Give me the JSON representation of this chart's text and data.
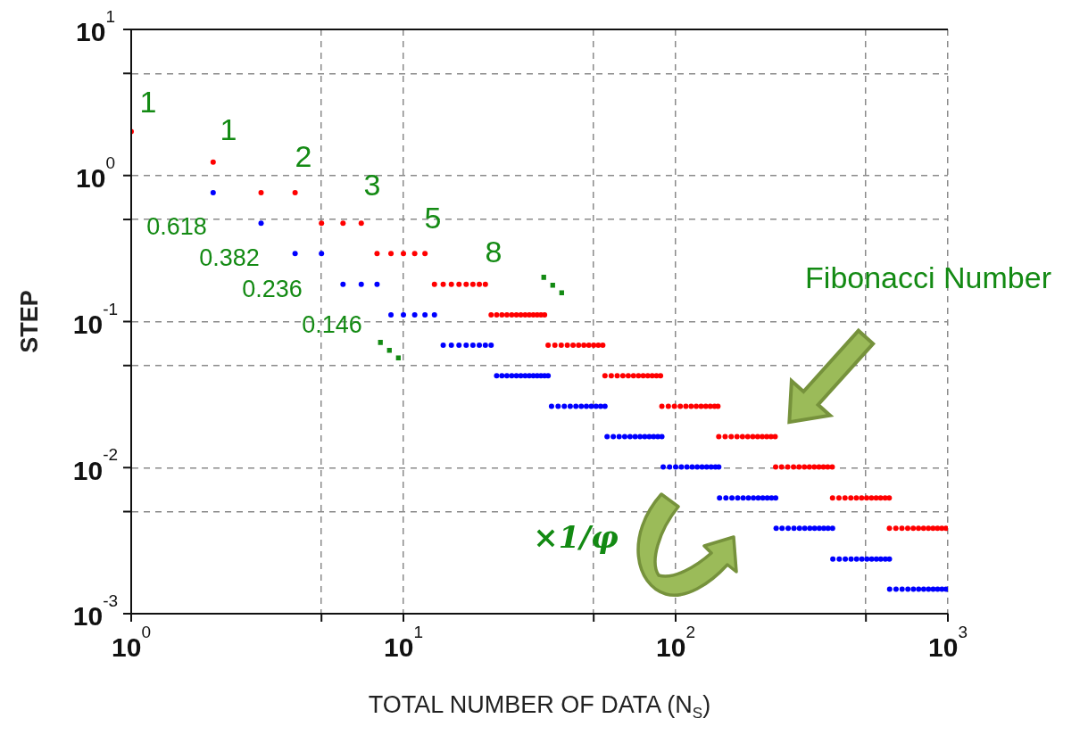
{
  "chart_data": {
    "type": "scatter",
    "xlabel": "TOTAL NUMBER OF DATA (N$_{S}$)",
    "ylabel": "STEP",
    "log": "xy",
    "grid": true,
    "legend": false,
    "marker": "circle",
    "xlim": [
      1,
      1000
    ],
    "ylim": [
      0.001,
      10
    ],
    "xticks": [
      {
        "value": 1,
        "label": "10$^{0}$"
      },
      {
        "value": 5,
        "label": null
      },
      {
        "value": 10,
        "label": "10$^{1}$"
      },
      {
        "value": 50,
        "label": null
      },
      {
        "value": 100,
        "label": "10$^{2}$"
      },
      {
        "value": 500,
        "label": null
      },
      {
        "value": 1000,
        "label": "10$^{3}$"
      }
    ],
    "yticks": [
      {
        "value": 0.001,
        "label": "10$^{-3}$"
      },
      {
        "value": 0.005,
        "label": null
      },
      {
        "value": 0.01,
        "label": "10$^{-2}$"
      },
      {
        "value": 0.05,
        "label": null
      },
      {
        "value": 0.1,
        "label": "10$^{-1}$"
      },
      {
        "value": 0.5,
        "label": null
      },
      {
        "value": 1,
        "label": "10$^{0}$"
      },
      {
        "value": 5,
        "label": null
      },
      {
        "value": 10,
        "label": "10$^{1}$"
      }
    ],
    "series": [
      {
        "color": "#ff0000",
        "x": [
          1,
          2,
          3,
          4,
          5,
          6,
          7,
          8,
          9,
          10,
          11,
          12,
          13,
          14,
          15,
          16,
          17,
          18,
          19,
          20,
          21,
          22,
          23,
          24,
          25,
          26,
          27,
          28,
          29,
          30,
          31,
          32,
          33,
          34,
          36,
          38,
          40,
          42,
          44,
          46,
          48,
          50,
          52,
          54,
          55,
          58,
          61,
          64,
          67,
          70,
          73,
          76,
          79,
          82,
          85,
          88,
          89,
          94,
          99,
          104,
          109,
          114,
          119,
          124,
          129,
          134,
          139,
          143,
          144,
          152,
          160,
          168,
          176,
          184,
          192,
          200,
          208,
          216,
          224,
          232,
          233,
          245,
          258,
          271,
          284,
          297,
          310,
          323,
          336,
          349,
          362,
          376,
          377,
          398,
          419,
          440,
          461,
          482,
          503,
          524,
          545,
          566,
          588,
          609,
          610,
          644,
          678,
          712,
          746,
          780,
          814,
          848,
          882,
          916,
          950,
          984
        ],
        "values": [
          2,
          1.236,
          0.764,
          0.764,
          0.472,
          0.472,
          0.472,
          0.292,
          0.292,
          0.292,
          0.292,
          0.292,
          0.18,
          0.18,
          0.18,
          0.18,
          0.18,
          0.18,
          0.18,
          0.18,
          0.111,
          0.111,
          0.111,
          0.111,
          0.111,
          0.111,
          0.111,
          0.111,
          0.111,
          0.111,
          0.111,
          0.111,
          0.111,
          0.0689,
          0.0689,
          0.0689,
          0.0689,
          0.0689,
          0.0689,
          0.0689,
          0.0689,
          0.0689,
          0.0689,
          0.0689,
          0.0426,
          0.0426,
          0.0426,
          0.0426,
          0.0426,
          0.0426,
          0.0426,
          0.0426,
          0.0426,
          0.0426,
          0.0426,
          0.0426,
          0.0263,
          0.0263,
          0.0263,
          0.0263,
          0.0263,
          0.0263,
          0.0263,
          0.0263,
          0.0263,
          0.0263,
          0.0263,
          0.0263,
          0.0163,
          0.0163,
          0.0163,
          0.0163,
          0.0163,
          0.0163,
          0.0163,
          0.0163,
          0.0163,
          0.0163,
          0.0163,
          0.0163,
          0.0101,
          0.0101,
          0.0101,
          0.0101,
          0.0101,
          0.0101,
          0.0101,
          0.0101,
          0.0101,
          0.0101,
          0.0101,
          0.0101,
          0.00621,
          0.00621,
          0.00621,
          0.00621,
          0.00621,
          0.00621,
          0.00621,
          0.00621,
          0.00621,
          0.00621,
          0.00621,
          0.00621,
          0.00384,
          0.00384,
          0.00384,
          0.00384,
          0.00384,
          0.00384,
          0.00384,
          0.00384,
          0.00384,
          0.00384,
          0.00384,
          0.00384
        ]
      },
      {
        "color": "#0000ff",
        "x": [
          2,
          3,
          4,
          5,
          6,
          7,
          8,
          9,
          10,
          11,
          12,
          13,
          14,
          15,
          16,
          17,
          18,
          19,
          20,
          21,
          22,
          23,
          24,
          25,
          26,
          27,
          28,
          29,
          30,
          31,
          32,
          33,
          34,
          35,
          37,
          39,
          41,
          43,
          45,
          47,
          49,
          51,
          53,
          55,
          56,
          59,
          62,
          65,
          68,
          71,
          74,
          77,
          80,
          83,
          86,
          89,
          90,
          95,
          100,
          105,
          110,
          115,
          120,
          125,
          130,
          135,
          140,
          144,
          145,
          153,
          161,
          169,
          177,
          185,
          193,
          201,
          209,
          217,
          225,
          233,
          234,
          246,
          259,
          272,
          285,
          298,
          311,
          324,
          337,
          350,
          363,
          377,
          378,
          399,
          420,
          441,
          462,
          483,
          504,
          525,
          546,
          567,
          589,
          610,
          611,
          645,
          679,
          713,
          747,
          781,
          815,
          849,
          883,
          917,
          951,
          985
        ],
        "values": [
          0.764,
          0.472,
          0.292,
          0.292,
          0.18,
          0.18,
          0.18,
          0.111,
          0.111,
          0.111,
          0.111,
          0.111,
          0.0689,
          0.0689,
          0.0689,
          0.0689,
          0.0689,
          0.0689,
          0.0689,
          0.0689,
          0.0426,
          0.0426,
          0.0426,
          0.0426,
          0.0426,
          0.0426,
          0.0426,
          0.0426,
          0.0426,
          0.0426,
          0.0426,
          0.0426,
          0.0426,
          0.0263,
          0.0263,
          0.0263,
          0.0263,
          0.0263,
          0.0263,
          0.0263,
          0.0263,
          0.0263,
          0.0263,
          0.0263,
          0.0163,
          0.0163,
          0.0163,
          0.0163,
          0.0163,
          0.0163,
          0.0163,
          0.0163,
          0.0163,
          0.0163,
          0.0163,
          0.0163,
          0.0101,
          0.0101,
          0.0101,
          0.0101,
          0.0101,
          0.0101,
          0.0101,
          0.0101,
          0.0101,
          0.0101,
          0.0101,
          0.0101,
          0.00621,
          0.00621,
          0.00621,
          0.00621,
          0.00621,
          0.00621,
          0.00621,
          0.00621,
          0.00621,
          0.00621,
          0.00621,
          0.00621,
          0.00384,
          0.00384,
          0.00384,
          0.00384,
          0.00384,
          0.00384,
          0.00384,
          0.00384,
          0.00384,
          0.00384,
          0.00384,
          0.00384,
          0.00237,
          0.00237,
          0.00237,
          0.00237,
          0.00237,
          0.00237,
          0.00237,
          0.00237,
          0.00237,
          0.00237,
          0.00237,
          0.00237,
          0.00147,
          0.00147,
          0.00147,
          0.00147,
          0.00147,
          0.00147,
          0.00147,
          0.00147,
          0.00147,
          0.00147,
          0.00147,
          0.00147
        ]
      }
    ],
    "annotations": [
      "1",
      "1",
      "2",
      "3",
      "5",
      "8",
      "0.618",
      "0.382",
      "0.236",
      "0.146",
      "⋱",
      "⋱",
      "Fibonacci Number",
      "×1/φ"
    ]
  }
}
